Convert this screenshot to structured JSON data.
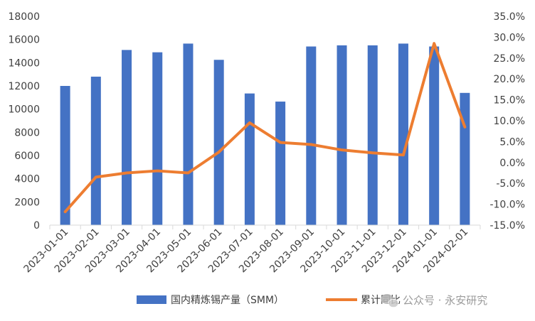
{
  "chart_data": {
    "type": "bar+line",
    "categories": [
      "2023-01-01",
      "2023-02-01",
      "2023-03-01",
      "2023-04-01",
      "2023-05-01",
      "2023-06-01",
      "2023-07-01",
      "2023-08-01",
      "2023-09-01",
      "2023-10-01",
      "2023-11-01",
      "2023-12-01",
      "2024-01-01",
      "2024-02-01"
    ],
    "series": [
      {
        "name": "国内精炼锡产量（SMM）",
        "type": "bar",
        "axis": "left",
        "color": "#4472C4",
        "values": [
          12000,
          12800,
          15100,
          14900,
          15650,
          14250,
          11350,
          10650,
          15400,
          15500,
          15500,
          15650,
          15400,
          11400
        ]
      },
      {
        "name": "累计同比",
        "type": "line",
        "axis": "right",
        "color": "#ED7D31",
        "values": [
          -11.8,
          -3.5,
          -2.5,
          -2.0,
          -2.5,
          2.5,
          9.5,
          4.8,
          4.3,
          3.0,
          2.3,
          1.8,
          28.5,
          8.5
        ]
      }
    ],
    "y_left": {
      "min": 0,
      "max": 18000,
      "step": 2000,
      "tick_labels": [
        "0",
        "2000",
        "4000",
        "6000",
        "8000",
        "10000",
        "12000",
        "14000",
        "16000",
        "18000"
      ]
    },
    "y_right": {
      "min": -15,
      "max": 35,
      "step": 5,
      "tick_labels": [
        "-15.0%",
        "-10.0%",
        "-5.0%",
        "0.0%",
        "5.0%",
        "10.0%",
        "15.0%",
        "20.0%",
        "25.0%",
        "30.0%",
        "35.0%"
      ]
    },
    "legend_position": "bottom",
    "grid": false
  },
  "watermark": {
    "text": "公众号 · 永安研究",
    "icon": "wechat-icon"
  }
}
